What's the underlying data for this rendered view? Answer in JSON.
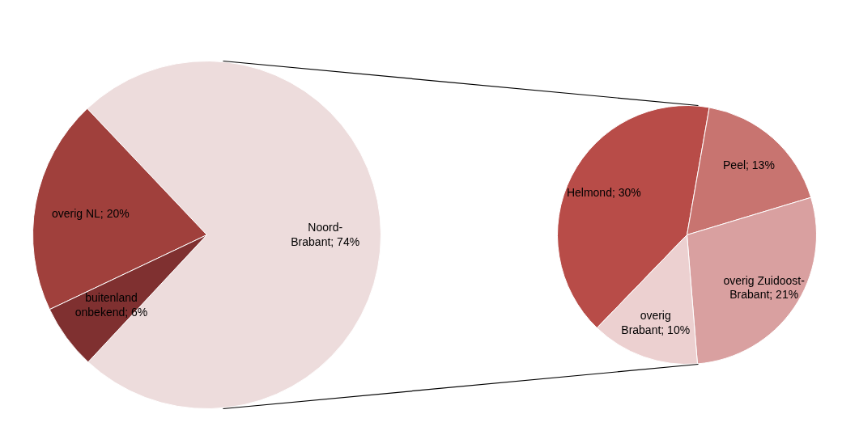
{
  "chart_data": [
    {
      "type": "pie",
      "categories": [
        "Noord-Brabant",
        "overig NL",
        "buitenland onbekend"
      ],
      "values": [
        74,
        20,
        6
      ],
      "colors": [
        "#eddcdc",
        "#a0403c",
        "#7f3030"
      ],
      "value_labels": [
        "74%",
        "20%",
        "6%"
      ]
    },
    {
      "type": "pie",
      "categories": [
        "Helmond",
        "Peel",
        "overig Zuidoost-Brabant",
        "overig Brabant"
      ],
      "values": [
        30,
        13,
        21,
        10
      ],
      "colors": [
        "#b84c48",
        "#c87470",
        "#d9a0a0",
        "#ecd0d0"
      ],
      "value_labels": [
        "30%",
        "13%",
        "21%",
        "10%"
      ]
    }
  ]
}
